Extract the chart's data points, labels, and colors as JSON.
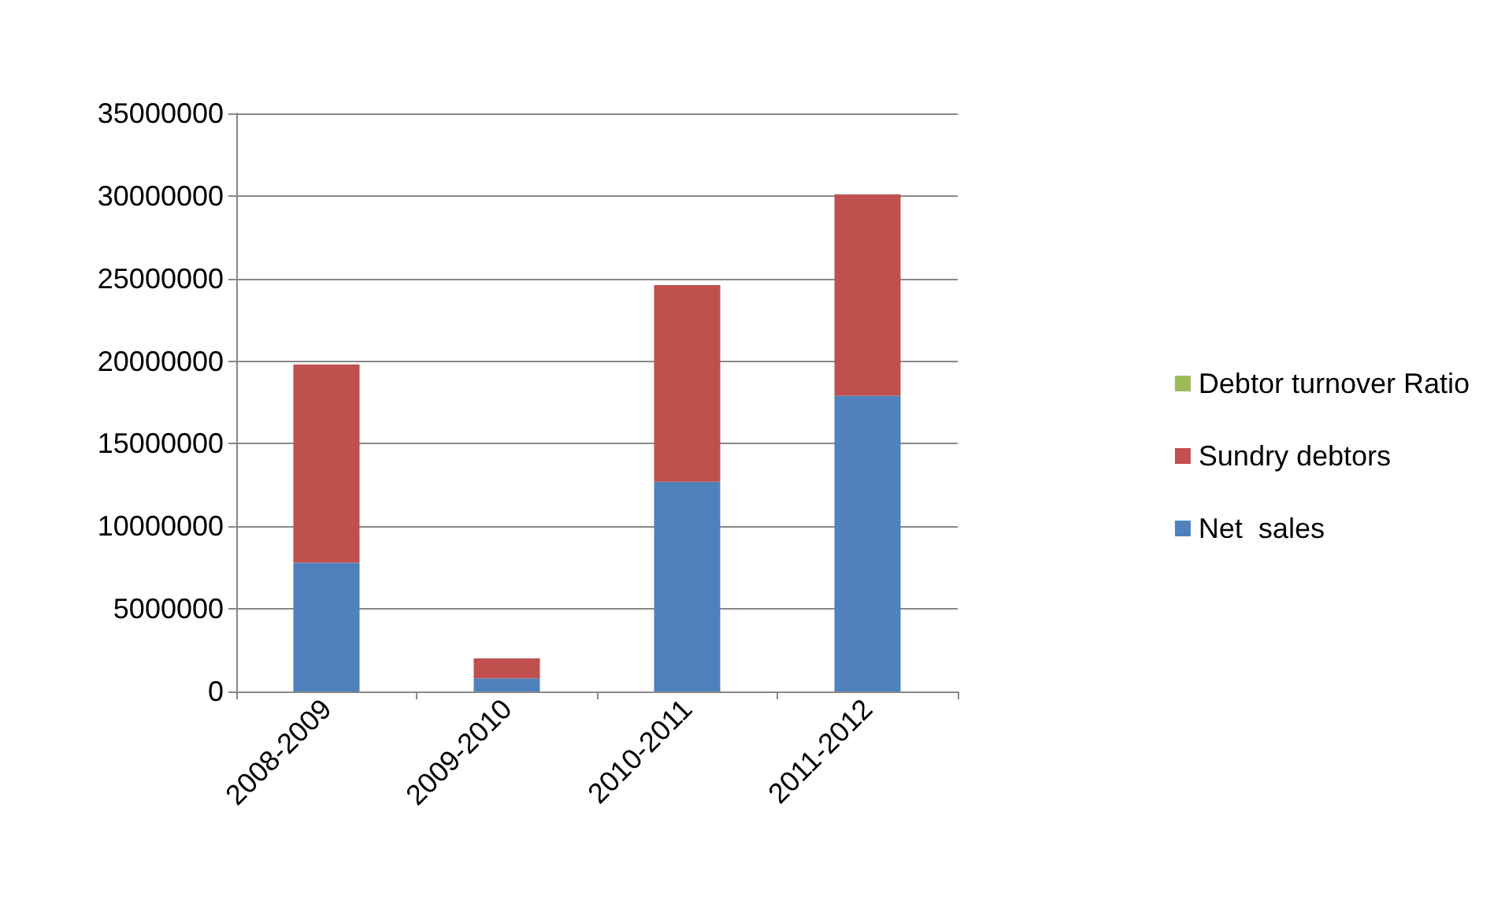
{
  "chart_data": {
    "type": "bar",
    "stacked": true,
    "categories": [
      "2008-2009",
      "2009-2010",
      "2010-2011",
      "2011-2012"
    ],
    "series": [
      {
        "name": "Net  sales",
        "color": "#4f81bd",
        "values": [
          7800000,
          800000,
          12700000,
          17900000
        ]
      },
      {
        "name": "Sundry debtors",
        "color": "#c0504d",
        "values": [
          12000000,
          1200000,
          11900000,
          12200000
        ]
      },
      {
        "name": "Debtor turnover Ratio",
        "color": "#9bbb59",
        "values": [
          0,
          0,
          0,
          0
        ]
      }
    ],
    "ylim": [
      0,
      35000000
    ],
    "yticks": [
      0,
      5000000,
      10000000,
      15000000,
      20000000,
      25000000,
      30000000,
      35000000
    ],
    "grid": "y",
    "legend": "right"
  }
}
